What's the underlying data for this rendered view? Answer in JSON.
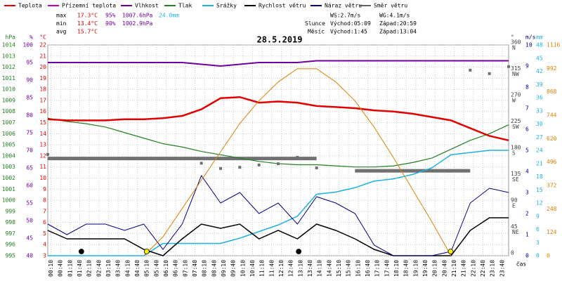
{
  "chart_data": {
    "type": "line",
    "title": "28.5.2019",
    "legend": [
      {
        "name": "Teplota",
        "color": "#e00000"
      },
      {
        "name": "Přízemní teplota",
        "color": "#c000c0"
      },
      {
        "name": "Vlhkost",
        "color": "#7000a0"
      },
      {
        "name": "Tlak",
        "color": "#208020"
      },
      {
        "name": "Srážky",
        "color": "#20b0e0"
      },
      {
        "name": "Rychlost větru",
        "color": "#000000"
      },
      {
        "name": "Náraz větru",
        "color": "#000080"
      },
      {
        "name": "Směr větru",
        "color": "#606060"
      }
    ],
    "stats": [
      {
        "label": "max",
        "values": [
          {
            "text": "17.3°C",
            "color": "#e00000"
          },
          {
            "text": "95%",
            "color": "#7000a0"
          },
          {
            "text": "1007.6hPa",
            "color": "#7000a0"
          },
          {
            "text": "24.0mm",
            "color": "#20b0e0"
          }
        ]
      },
      {
        "label": "min",
        "values": [
          {
            "text": "13.4°C",
            "color": "#e00000"
          },
          {
            "text": "90%",
            "color": "#7000a0"
          },
          {
            "text": "1002.9hPa",
            "color": "#7000a0"
          }
        ]
      },
      {
        "label": "avg",
        "values": [
          {
            "text": "15.7°C",
            "color": "#e00000"
          }
        ]
      }
    ],
    "wind_stats": [
      "WS:2.7m/s",
      "WG:4.1m/s"
    ],
    "sun": {
      "label": "Slunce",
      "rise": "Východ:05:09",
      "set": "Západ:20:59",
      "color": "#ffee00"
    },
    "moon": {
      "label": "Měsíc",
      "rise": "Východ:1:45",
      "set": "Západ:13:04",
      "color": "#000000"
    },
    "xlabel": "čas",
    "xlim": [
      0,
      1440
    ],
    "xticks": [
      {
        "value": 10,
        "label": "00:10"
      },
      {
        "value": 40,
        "label": "00:40"
      },
      {
        "value": 70,
        "label": "01:10"
      },
      {
        "value": 100,
        "label": "01:40"
      },
      {
        "value": 130,
        "label": "02:10"
      },
      {
        "value": 160,
        "label": "02:40"
      },
      {
        "value": 190,
        "label": "03:10"
      },
      {
        "value": 220,
        "label": "03:40"
      },
      {
        "value": 250,
        "label": "04:10"
      },
      {
        "value": 280,
        "label": "04:40"
      },
      {
        "value": 310,
        "label": "05:10"
      },
      {
        "value": 340,
        "label": "05:40"
      },
      {
        "value": 370,
        "label": "06:10"
      },
      {
        "value": 400,
        "label": "06:40"
      },
      {
        "value": 430,
        "label": "07:10"
      },
      {
        "value": 460,
        "label": "07:40"
      },
      {
        "value": 490,
        "label": "08:10"
      },
      {
        "value": 520,
        "label": "08:40"
      },
      {
        "value": 550,
        "label": "09:10"
      },
      {
        "value": 580,
        "label": "09:40"
      },
      {
        "value": 610,
        "label": "10:10"
      },
      {
        "value": 640,
        "label": "10:40"
      },
      {
        "value": 670,
        "label": "11:10"
      },
      {
        "value": 700,
        "label": "11:40"
      },
      {
        "value": 730,
        "label": "12:10"
      },
      {
        "value": 760,
        "label": "12:40"
      },
      {
        "value": 790,
        "label": "13:10"
      },
      {
        "value": 820,
        "label": "13:40"
      },
      {
        "value": 850,
        "label": "14:10"
      },
      {
        "value": 880,
        "label": "14:40"
      },
      {
        "value": 910,
        "label": "15:10"
      },
      {
        "value": 940,
        "label": "15:40"
      },
      {
        "value": 970,
        "label": "16:10"
      },
      {
        "value": 1000,
        "label": "16:40"
      },
      {
        "value": 1030,
        "label": "17:10"
      },
      {
        "value": 1060,
        "label": "17:40"
      },
      {
        "value": 1090,
        "label": "18:10"
      },
      {
        "value": 1120,
        "label": "18:40"
      },
      {
        "value": 1150,
        "label": "19:10"
      },
      {
        "value": 1180,
        "label": "19:40"
      },
      {
        "value": 1210,
        "label": "20:10"
      },
      {
        "value": 1240,
        "label": "20:40"
      },
      {
        "value": 1270,
        "label": "21:10"
      },
      {
        "value": 1300,
        "label": "21:40"
      },
      {
        "value": 1330,
        "label": "22:10"
      },
      {
        "value": 1360,
        "label": "22:40"
      },
      {
        "value": 1390,
        "label": "23:10"
      },
      {
        "value": 1420,
        "label": "23:40"
      }
    ],
    "grid": true,
    "axes": [
      {
        "key": "hpa",
        "side": "left",
        "label": "hPa",
        "color": "#208020",
        "ylim": [
          995,
          1014
        ],
        "yticks": [
          995,
          996,
          997,
          998,
          999,
          1000,
          1001,
          1002,
          1003,
          1004,
          1005,
          1006,
          1007,
          1008,
          1009,
          1010,
          1011,
          1012,
          1013,
          1014
        ]
      },
      {
        "key": "pct",
        "side": "left",
        "label": "%",
        "color": "#7000a0",
        "ylim": [
          40,
          100
        ],
        "yticks": [
          40,
          45,
          50,
          55,
          60,
          65,
          70,
          75,
          80,
          85,
          90,
          95,
          100
        ]
      },
      {
        "key": "degc",
        "side": "left",
        "label": "°C",
        "color": "#e00000",
        "ylim": [
          3,
          22
        ],
        "yticks": [
          3,
          4,
          5,
          6,
          7,
          8,
          9,
          10,
          11,
          12,
          13,
          14,
          15,
          16,
          17,
          18,
          19,
          20,
          21,
          22
        ]
      },
      {
        "key": "dir",
        "side": "right",
        "label": "°",
        "color": "#404040",
        "ylim": [
          0,
          360
        ],
        "yticks": [
          0,
          45,
          90,
          135,
          180,
          225,
          270,
          315,
          360
        ],
        "compass": [
          null,
          "NE",
          "E",
          "SE",
          "S",
          "SW",
          "W",
          "NW",
          "N"
        ]
      },
      {
        "key": "ms",
        "side": "right",
        "label": "m/s",
        "color": "#000080",
        "ylim": [
          0,
          10
        ],
        "yticks": [
          0,
          1,
          2,
          3,
          4,
          5,
          6,
          7,
          8,
          9,
          10
        ]
      },
      {
        "key": "mm",
        "side": "right",
        "label": "mm",
        "color": "#20b0e0",
        "ylim": [
          0,
          48
        ],
        "yticks": [
          0,
          3,
          6,
          9,
          12,
          15,
          18,
          21,
          24,
          27,
          30,
          33,
          36,
          39,
          42,
          45,
          48
        ]
      },
      {
        "key": "wm",
        "side": "right",
        "color": "#e08000",
        "ylim": [
          0,
          1116
        ],
        "yticks": [
          0,
          124,
          248,
          372,
          496,
          620,
          744,
          868,
          992,
          1116
        ]
      }
    ],
    "x": [
      0,
      60,
      120,
      180,
      240,
      300,
      360,
      420,
      480,
      540,
      600,
      660,
      720,
      780,
      840,
      900,
      960,
      1020,
      1080,
      1140,
      1200,
      1260,
      1320,
      1380,
      1440
    ],
    "series": [
      {
        "name": "Vlhkost",
        "axis": "pct",
        "color": "#7000a0",
        "width": 2,
        "values": [
          95,
          95,
          95,
          95,
          95,
          95,
          95,
          95,
          94.5,
          94,
          94.5,
          95,
          95,
          95,
          95.5,
          95.5,
          95.5,
          95.5,
          95.5,
          95.5,
          95.5,
          95.5,
          95.5,
          95.5,
          95.5
        ]
      },
      {
        "name": "Tlak",
        "axis": "hpa",
        "color": "#208020",
        "width": 1.2,
        "values": [
          1007.4,
          1007.1,
          1006.9,
          1006.6,
          1006.1,
          1005.6,
          1005.1,
          1004.8,
          1004.4,
          1004.1,
          1003.8,
          1003.5,
          1003.3,
          1003.2,
          1003.2,
          1003.1,
          1003.0,
          1003.0,
          1003.1,
          1003.4,
          1003.8,
          1004.6,
          1005.4,
          1006.0,
          1006.8
        ]
      },
      {
        "name": "Srážky",
        "axis": "mm",
        "color": "#20b0e0",
        "width": 1.5,
        "values": [
          0,
          0,
          0,
          0,
          0,
          0,
          2.8,
          2.8,
          2.8,
          2.8,
          4,
          5.5,
          7,
          9,
          14,
          14.5,
          15.5,
          17,
          17.5,
          18.5,
          20,
          23,
          23.5,
          24,
          24
        ]
      },
      {
        "name": "Rychlost větru",
        "axis": "ms",
        "color": "#000000",
        "width": 1.5,
        "values": [
          1.2,
          0.8,
          0.8,
          0.8,
          0.8,
          0.3,
          0,
          0.8,
          1.5,
          1.3,
          1.5,
          0.8,
          1.2,
          0.8,
          1.5,
          1.2,
          0.8,
          0.3,
          0,
          0,
          0,
          0,
          1.2,
          1.8,
          1.8
        ]
      },
      {
        "name": "Náraz větru",
        "axis": "ms",
        "color": "#000080",
        "width": 1,
        "values": [
          1.5,
          1,
          1.5,
          1.5,
          1.2,
          1.5,
          0.3,
          1.5,
          3.8,
          2.5,
          3,
          2,
          2.5,
          1.5,
          2.8,
          2.5,
          2,
          0.5,
          0,
          0,
          0,
          0.2,
          2.5,
          3.2,
          3
        ]
      },
      {
        "name": "Teplota",
        "axis": "degc",
        "color": "#e00000",
        "width": 2.5,
        "values": [
          15.3,
          15.2,
          15.2,
          15.2,
          15.3,
          15.3,
          15.4,
          15.6,
          16.2,
          17.2,
          17.3,
          16.8,
          16.9,
          16.8,
          16.5,
          16.4,
          16.3,
          16.1,
          16.0,
          15.8,
          15.5,
          15.2,
          14.5,
          13.8,
          13.4
        ]
      },
      {
        "axis": "wm",
        "color": "#e08000",
        "width": 1,
        "values": [
          null,
          null,
          null,
          null,
          null,
          0,
          100,
          250,
          400,
          550,
          700,
          820,
          920,
          990,
          990,
          920,
          820,
          680,
          520,
          350,
          180,
          0,
          null,
          null,
          null
        ]
      }
    ],
    "direction_avg": {
      "axis": "dir",
      "color": "#707070",
      "values": [
        166,
        166,
        166,
        166,
        166,
        166,
        166,
        166,
        166,
        166,
        166,
        166,
        166,
        166,
        166,
        null,
        145,
        145,
        145,
        145,
        145,
        145,
        145,
        null,
        null
      ]
    },
    "direction_points": {
      "axis": "dir",
      "color": "#707070",
      "values": [
        173,
        null,
        null,
        null,
        null,
        null,
        null,
        null,
        158,
        149,
        151,
        155,
        157,
        168,
        150,
        null,
        null,
        null,
        null,
        null,
        null,
        null,
        317,
        311,
        323
      ]
    }
  }
}
